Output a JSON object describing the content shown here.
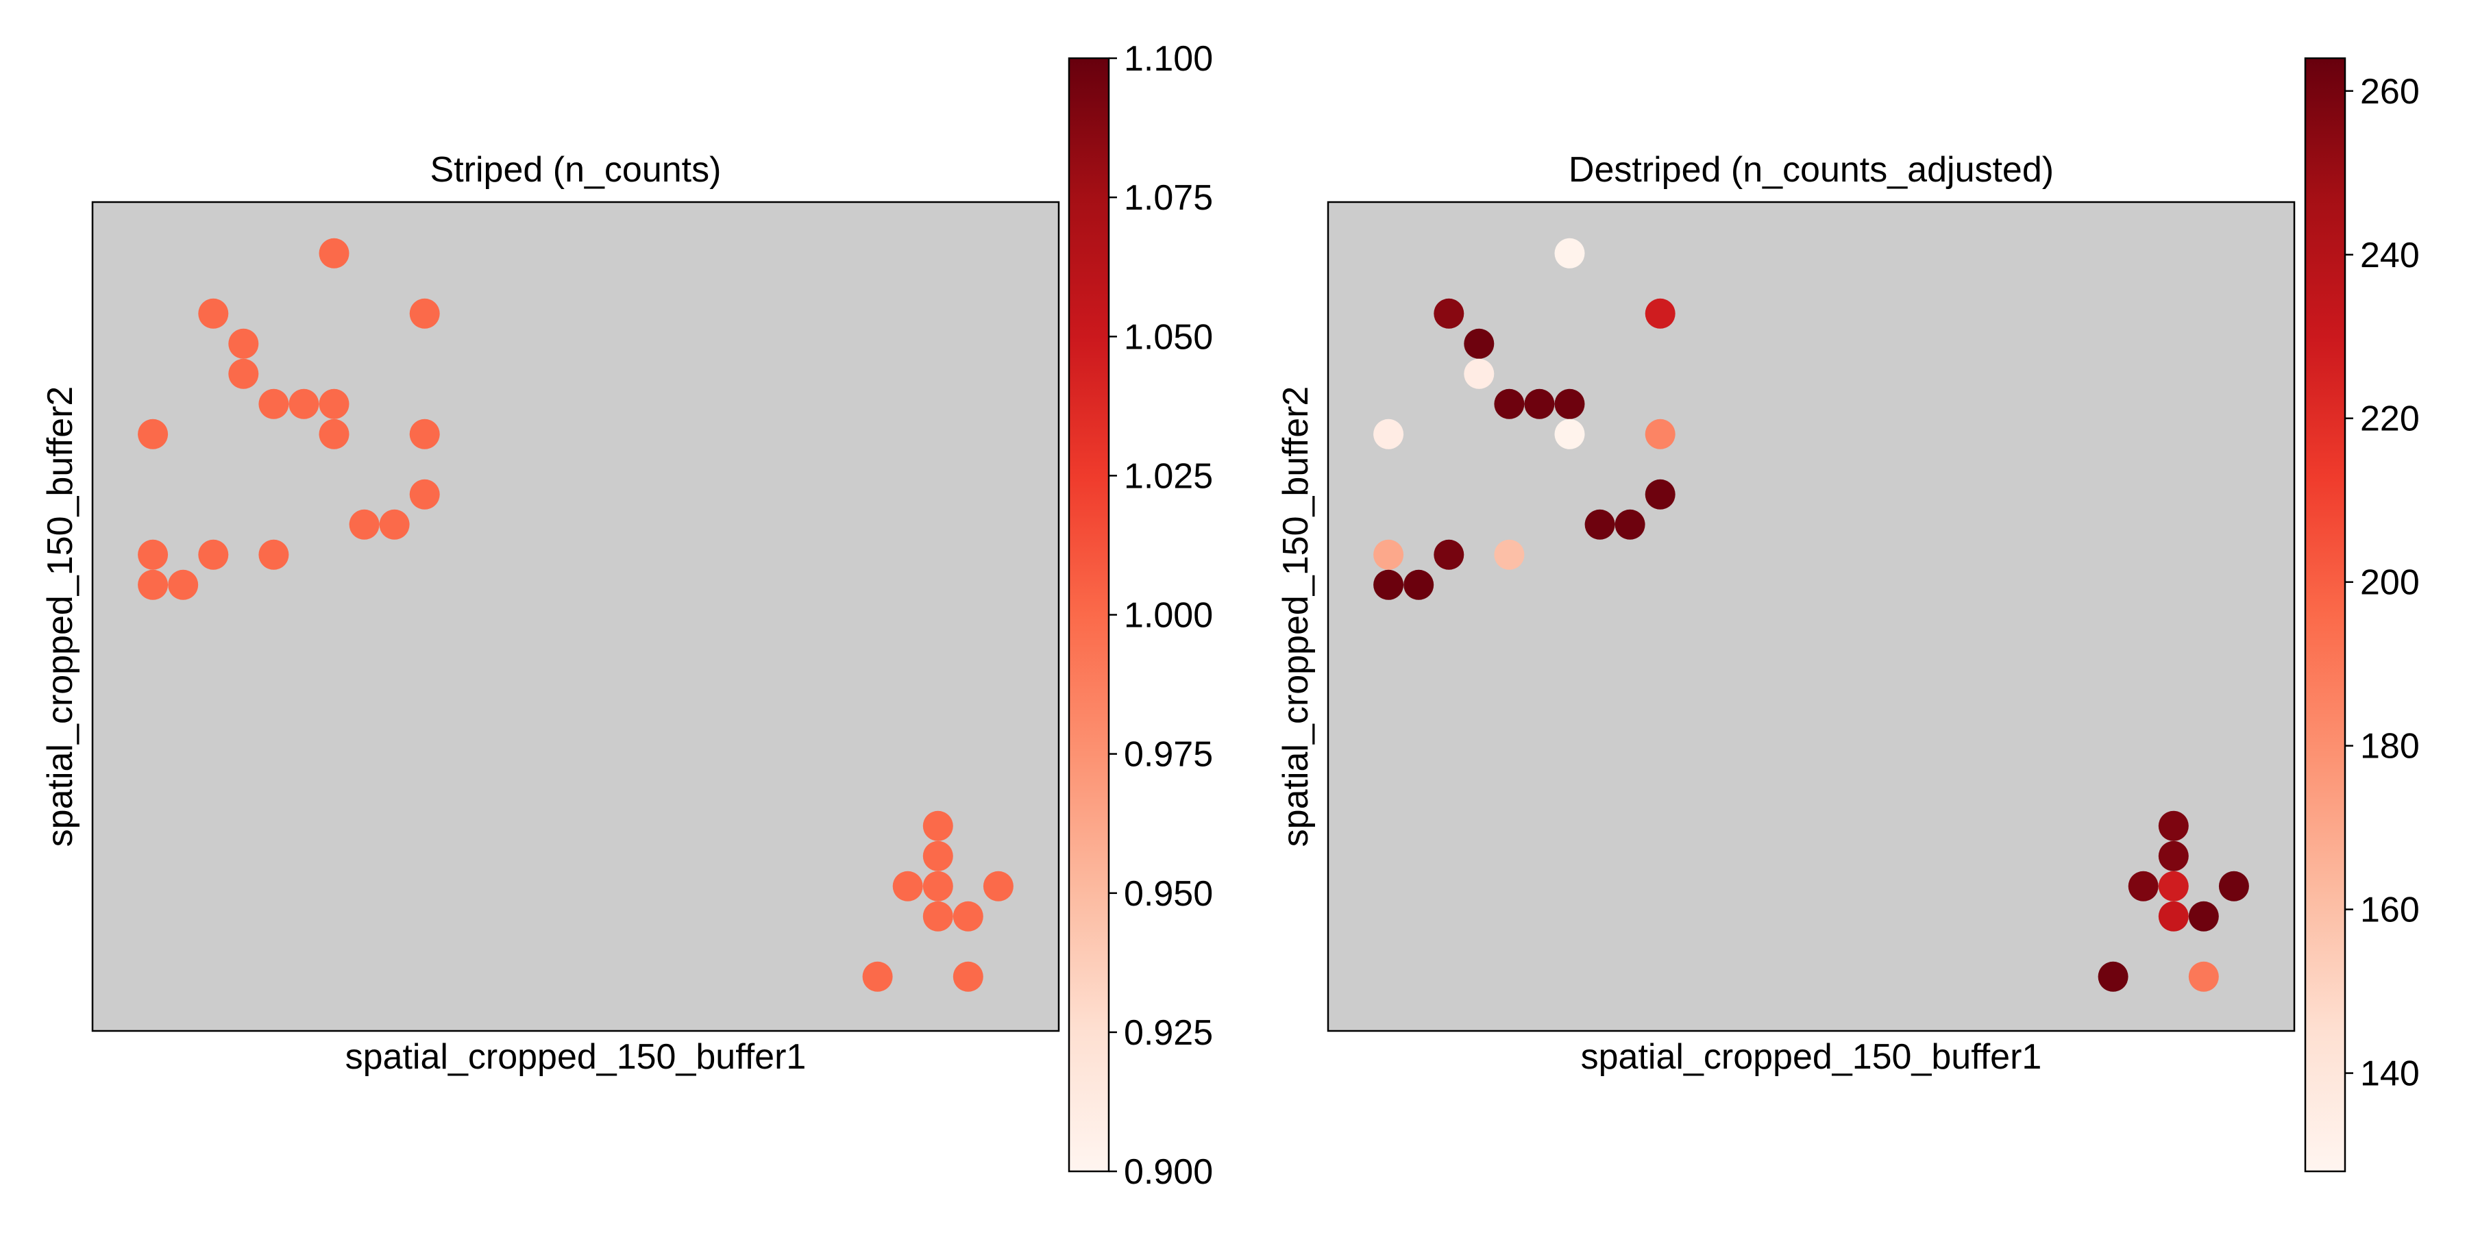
{
  "panels": [
    {
      "title": "Striped (n_counts)",
      "xlabel": "spatial_cropped_150_buffer1",
      "ylabel": "spatial_cropped_150_buffer2",
      "colorbar": {
        "cmap": "Reds",
        "vmin": 0.9,
        "vmax": 1.1,
        "ticks": [
          "0.900",
          "0.925",
          "0.950",
          "0.975",
          "1.000",
          "1.025",
          "1.050",
          "1.075",
          "1.100"
        ]
      }
    },
    {
      "title": "Destriped (n_counts_adjusted)",
      "xlabel": "spatial_cropped_150_buffer1",
      "ylabel": "spatial_cropped_150_buffer2",
      "colorbar": {
        "cmap": "Reds",
        "vmin": 128,
        "vmax": 264,
        "ticks": [
          "140",
          "160",
          "180",
          "200",
          "220",
          "240",
          "260"
        ]
      }
    }
  ],
  "chart_data": [
    {
      "type": "scatter",
      "title": "Striped (n_counts)",
      "xlabel": "spatial_cropped_150_buffer1",
      "ylabel": "spatial_cropped_150_buffer2",
      "background": "#cccccc",
      "colormap": "Reds",
      "color_range": [
        0.9,
        1.1
      ],
      "xlim": [
        0,
        32
      ],
      "ylim": [
        0,
        27.5
      ],
      "points": [
        {
          "x": 8,
          "y": 25.8,
          "value": 1.0
        },
        {
          "x": 4,
          "y": 23.8,
          "value": 1.0
        },
        {
          "x": 11,
          "y": 23.8,
          "value": 1.0
        },
        {
          "x": 5,
          "y": 22.8,
          "value": 1.0
        },
        {
          "x": 5,
          "y": 21.8,
          "value": 1.0
        },
        {
          "x": 6,
          "y": 20.8,
          "value": 1.0
        },
        {
          "x": 7,
          "y": 20.8,
          "value": 1.0
        },
        {
          "x": 8,
          "y": 20.8,
          "value": 1.0
        },
        {
          "x": 2,
          "y": 19.8,
          "value": 1.0
        },
        {
          "x": 8,
          "y": 19.8,
          "value": 1.0
        },
        {
          "x": 11,
          "y": 19.8,
          "value": 1.0
        },
        {
          "x": 11,
          "y": 17.8,
          "value": 1.0
        },
        {
          "x": 9,
          "y": 16.8,
          "value": 1.0
        },
        {
          "x": 10,
          "y": 16.8,
          "value": 1.0
        },
        {
          "x": 2,
          "y": 15.8,
          "value": 1.0
        },
        {
          "x": 4,
          "y": 15.8,
          "value": 1.0
        },
        {
          "x": 6,
          "y": 15.8,
          "value": 1.0
        },
        {
          "x": 2,
          "y": 14.8,
          "value": 1.0
        },
        {
          "x": 3,
          "y": 14.8,
          "value": 1.0
        },
        {
          "x": 28,
          "y": 6.8,
          "value": 1.0
        },
        {
          "x": 28,
          "y": 5.8,
          "value": 1.0
        },
        {
          "x": 27,
          "y": 4.8,
          "value": 1.0
        },
        {
          "x": 28,
          "y": 4.8,
          "value": 1.0
        },
        {
          "x": 30,
          "y": 4.8,
          "value": 1.0
        },
        {
          "x": 28,
          "y": 3.8,
          "value": 1.0
        },
        {
          "x": 29,
          "y": 3.8,
          "value": 1.0
        },
        {
          "x": 26,
          "y": 1.8,
          "value": 1.0
        },
        {
          "x": 29,
          "y": 1.8,
          "value": 1.0
        }
      ]
    },
    {
      "type": "scatter",
      "title": "Destriped (n_counts_adjusted)",
      "xlabel": "spatial_cropped_150_buffer1",
      "ylabel": "spatial_cropped_150_buffer2",
      "background": "#cccccc",
      "colormap": "Reds",
      "color_range": [
        128,
        264
      ],
      "xlim": [
        0,
        32
      ],
      "ylim": [
        0,
        27.5
      ],
      "points": [
        {
          "x": 8,
          "y": 25.8,
          "value": 130
        },
        {
          "x": 4,
          "y": 23.8,
          "value": 255
        },
        {
          "x": 11,
          "y": 23.8,
          "value": 228
        },
        {
          "x": 5,
          "y": 22.8,
          "value": 262
        },
        {
          "x": 5,
          "y": 21.8,
          "value": 135
        },
        {
          "x": 6,
          "y": 20.8,
          "value": 262
        },
        {
          "x": 7,
          "y": 20.8,
          "value": 262
        },
        {
          "x": 8,
          "y": 20.8,
          "value": 262
        },
        {
          "x": 2,
          "y": 19.8,
          "value": 135
        },
        {
          "x": 8,
          "y": 19.8,
          "value": 130
        },
        {
          "x": 11,
          "y": 19.8,
          "value": 185
        },
        {
          "x": 11,
          "y": 17.8,
          "value": 262
        },
        {
          "x": 9,
          "y": 16.8,
          "value": 262
        },
        {
          "x": 10,
          "y": 16.8,
          "value": 262
        },
        {
          "x": 2,
          "y": 15.8,
          "value": 170
        },
        {
          "x": 4,
          "y": 15.8,
          "value": 260
        },
        {
          "x": 6,
          "y": 15.8,
          "value": 160
        },
        {
          "x": 2,
          "y": 14.8,
          "value": 263
        },
        {
          "x": 3,
          "y": 14.8,
          "value": 263
        },
        {
          "x": 28,
          "y": 6.8,
          "value": 258
        },
        {
          "x": 28,
          "y": 5.8,
          "value": 258
        },
        {
          "x": 27,
          "y": 4.8,
          "value": 258
        },
        {
          "x": 28,
          "y": 4.8,
          "value": 228
        },
        {
          "x": 30,
          "y": 4.8,
          "value": 262
        },
        {
          "x": 28,
          "y": 3.8,
          "value": 232
        },
        {
          "x": 29,
          "y": 3.8,
          "value": 262
        },
        {
          "x": 26,
          "y": 1.8,
          "value": 262
        },
        {
          "x": 29,
          "y": 1.8,
          "value": 190
        }
      ]
    }
  ]
}
